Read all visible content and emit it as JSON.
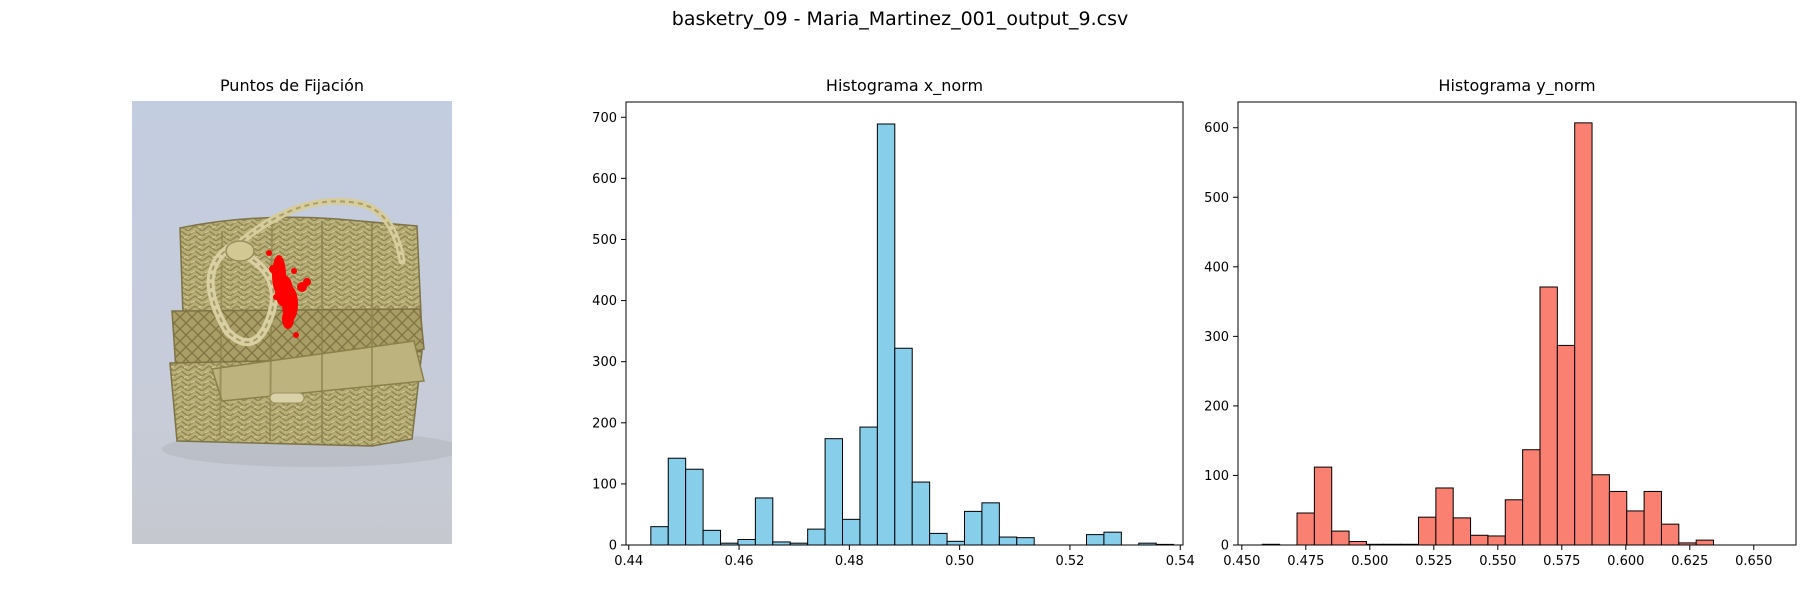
{
  "figure": {
    "title": "basketry_09 - Maria_Martinez_001_output_9.csv"
  },
  "image_panel": {
    "title": "Puntos de Fijación",
    "content": "wicker-basket-photo",
    "overlay_color": "#ff0000",
    "background_color": "#c5cedd"
  },
  "chart_data": [
    {
      "type": "bar",
      "subtype": "histogram",
      "title": "Histograma x_norm",
      "xlabel": "",
      "ylabel": "",
      "color": "#87ceeb",
      "edgecolor": "#000000",
      "xlim": [
        0.4395,
        0.5405
      ],
      "ylim": [
        0,
        725
      ],
      "xticks": [
        0.44,
        0.46,
        0.48,
        0.5,
        0.52,
        0.54
      ],
      "xtick_labels": [
        "0.44",
        "0.46",
        "0.48",
        "0.50",
        "0.52",
        "0.54"
      ],
      "yticks": [
        0,
        100,
        200,
        300,
        400,
        500,
        600,
        700
      ],
      "ytick_labels": [
        "0",
        "100",
        "200",
        "300",
        "400",
        "500",
        "600",
        "700"
      ],
      "bin_start": 0.444,
      "bin_width": 0.00316,
      "values": [
        30,
        142,
        124,
        24,
        3,
        9,
        77,
        5,
        3,
        26,
        174,
        42,
        193,
        689,
        322,
        103,
        19,
        6,
        55,
        69,
        13,
        12,
        0,
        0,
        0,
        17,
        21,
        0,
        3,
        1
      ]
    },
    {
      "type": "bar",
      "subtype": "histogram",
      "title": "Histograma y_norm",
      "xlabel": "",
      "ylabel": "",
      "color": "#fa8072",
      "edgecolor": "#000000",
      "xlim": [
        0.4485,
        0.6665
      ],
      "ylim": [
        0,
        637
      ],
      "xticks": [
        0.45,
        0.475,
        0.5,
        0.525,
        0.55,
        0.575,
        0.6,
        0.625,
        0.65
      ],
      "xtick_labels": [
        "0.450",
        "0.475",
        "0.500",
        "0.525",
        "0.550",
        "0.575",
        "0.600",
        "0.625",
        "0.650"
      ],
      "yticks": [
        0,
        100,
        200,
        300,
        400,
        500,
        600
      ],
      "ytick_labels": [
        "0",
        "100",
        "200",
        "300",
        "400",
        "500",
        "600"
      ],
      "bin_start": 0.458,
      "bin_width": 0.00678,
      "values": [
        1,
        0,
        46,
        112,
        20,
        5,
        1,
        1,
        1,
        40,
        82,
        39,
        14,
        13,
        65,
        137,
        371,
        287,
        607,
        101,
        77,
        49,
        77,
        30,
        3,
        7,
        0,
        0,
        0,
        0
      ]
    }
  ]
}
